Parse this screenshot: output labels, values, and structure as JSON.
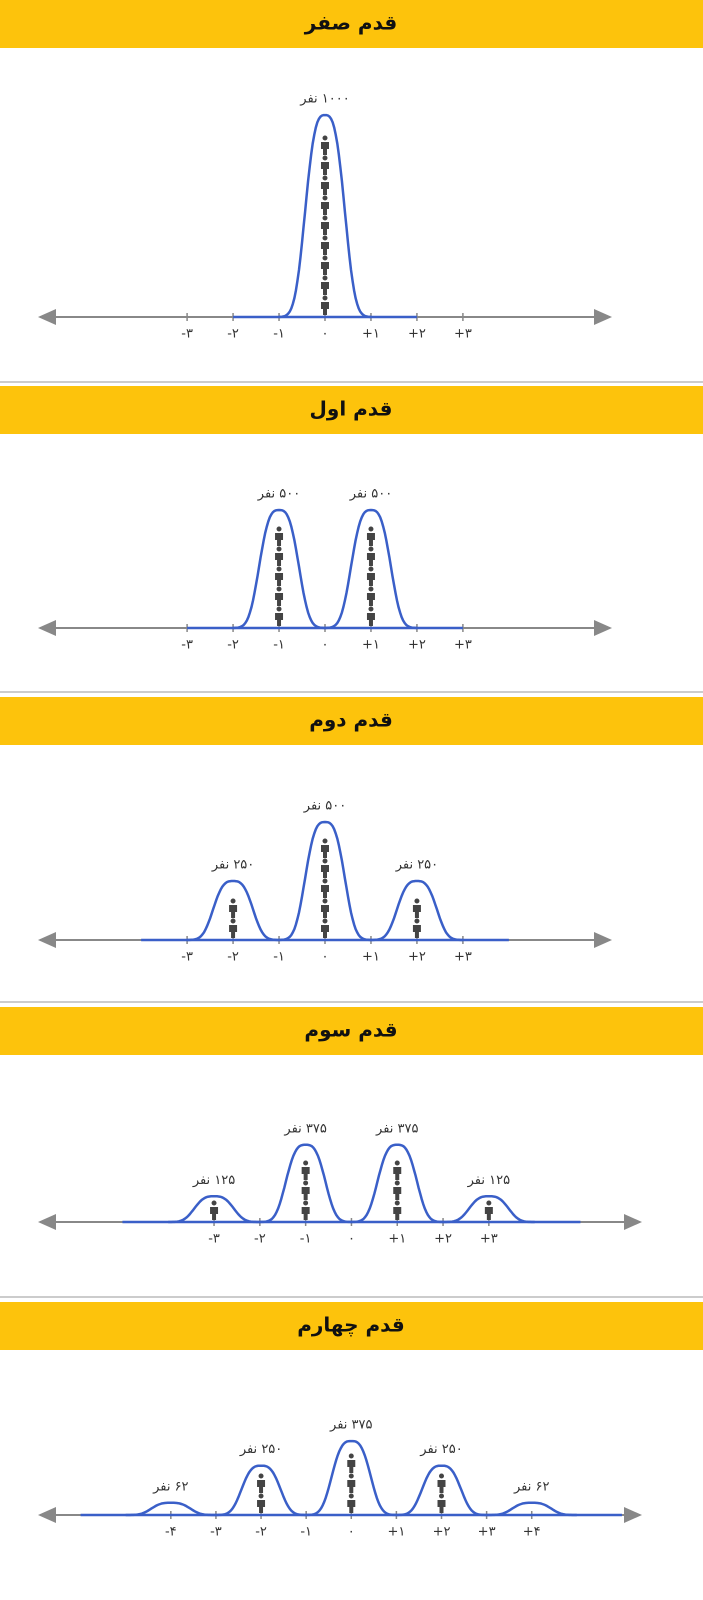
{
  "chart_data": [
    {
      "type": "peaks",
      "title": "قدم صفر",
      "x": [
        0
      ],
      "values": [
        1000
      ],
      "value_labels": [
        "۱۰۰۰ نفر"
      ],
      "xlim": [
        -6.2,
        6.2
      ],
      "ylim": [
        0,
        1040
      ],
      "xticks": [
        {
          "value": -3,
          "label": "-۳"
        },
        {
          "value": -2,
          "label": "-۲"
        },
        {
          "value": -1,
          "label": "-۱"
        },
        {
          "value": 0,
          "label": "۰"
        },
        {
          "value": 1,
          "label": "+۱"
        },
        {
          "value": 2,
          "label": "+۲"
        },
        {
          "value": 3,
          "label": "+۳"
        }
      ],
      "color": "#3a5fc8"
    },
    {
      "type": "peaks",
      "title": "قدم اول",
      "x": [
        -1,
        1
      ],
      "values": [
        500,
        500
      ],
      "value_labels": [
        "۵۰۰ نفر",
        "۵۰۰ نفر"
      ],
      "xlim": [
        -6.2,
        6.2
      ],
      "ylim": [
        0,
        890
      ],
      "xticks": [
        {
          "value": -3,
          "label": "-۳"
        },
        {
          "value": -2,
          "label": "-۲"
        },
        {
          "value": -1,
          "label": "-۱"
        },
        {
          "value": 0,
          "label": "۰"
        },
        {
          "value": 1,
          "label": "+۱"
        },
        {
          "value": 2,
          "label": "+۲"
        },
        {
          "value": 3,
          "label": "+۳"
        }
      ],
      "color": "#3a5fc8"
    },
    {
      "type": "peaks",
      "title": "قدم دوم",
      "x": [
        -2,
        0,
        2
      ],
      "values": [
        250,
        500,
        250
      ],
      "value_labels": [
        "۲۵۰ نفر",
        "۵۰۰ نفر",
        "۲۵۰ نفر"
      ],
      "xlim": [
        -6.2,
        6.2
      ],
      "ylim": [
        0,
        890
      ],
      "xticks": [
        {
          "value": -3,
          "label": "-۳"
        },
        {
          "value": -2,
          "label": "-۲"
        },
        {
          "value": -1,
          "label": "-۱"
        },
        {
          "value": 0,
          "label": "۰"
        },
        {
          "value": 1,
          "label": "+۱"
        },
        {
          "value": 2,
          "label": "+۲"
        },
        {
          "value": 3,
          "label": "+۳"
        }
      ],
      "color": "#3a5fc8"
    },
    {
      "type": "peaks",
      "title": "قدم سوم",
      "x": [
        -3,
        -1,
        1,
        3
      ],
      "values": [
        125,
        375,
        375,
        125
      ],
      "value_labels": [
        "۱۲۵ نفر",
        "۳۷۵ نفر",
        "۳۷۵ نفر",
        "۱۲۵ نفر"
      ],
      "xlim": [
        -6.8,
        6.3
      ],
      "ylim": [
        0,
        1020
      ],
      "xticks": [
        {
          "value": -3,
          "label": "-۳"
        },
        {
          "value": -2,
          "label": "-۲"
        },
        {
          "value": -1,
          "label": "-۱"
        },
        {
          "value": 0,
          "label": "۰"
        },
        {
          "value": 1,
          "label": "+۱"
        },
        {
          "value": 2,
          "label": "+۲"
        },
        {
          "value": 3,
          "label": "+۳"
        }
      ],
      "color": "#3a5fc8"
    },
    {
      "type": "peaks",
      "title": "قدم چهارم",
      "x": [
        -4,
        -2,
        0,
        2,
        4
      ],
      "values": [
        62,
        250,
        375,
        250,
        62
      ],
      "value_labels": [
        "۶۲ نفر",
        "۲۵۰ نفر",
        "۳۷۵ نفر",
        "۲۵۰ نفر",
        "۶۲ نفر"
      ],
      "xlim": [
        -6.9,
        6.4
      ],
      "ylim": [
        0,
        1065
      ],
      "xticks": [
        {
          "value": -4,
          "label": "-۴"
        },
        {
          "value": -3,
          "label": "-۳"
        },
        {
          "value": -2,
          "label": "-۲"
        },
        {
          "value": -1,
          "label": "-۱"
        },
        {
          "value": 0,
          "label": "۰"
        },
        {
          "value": 1,
          "label": "+۱"
        },
        {
          "value": 2,
          "label": "+۲"
        },
        {
          "value": 3,
          "label": "+۳"
        },
        {
          "value": 4,
          "label": "+۴"
        }
      ],
      "color": "#3a5fc8"
    }
  ]
}
